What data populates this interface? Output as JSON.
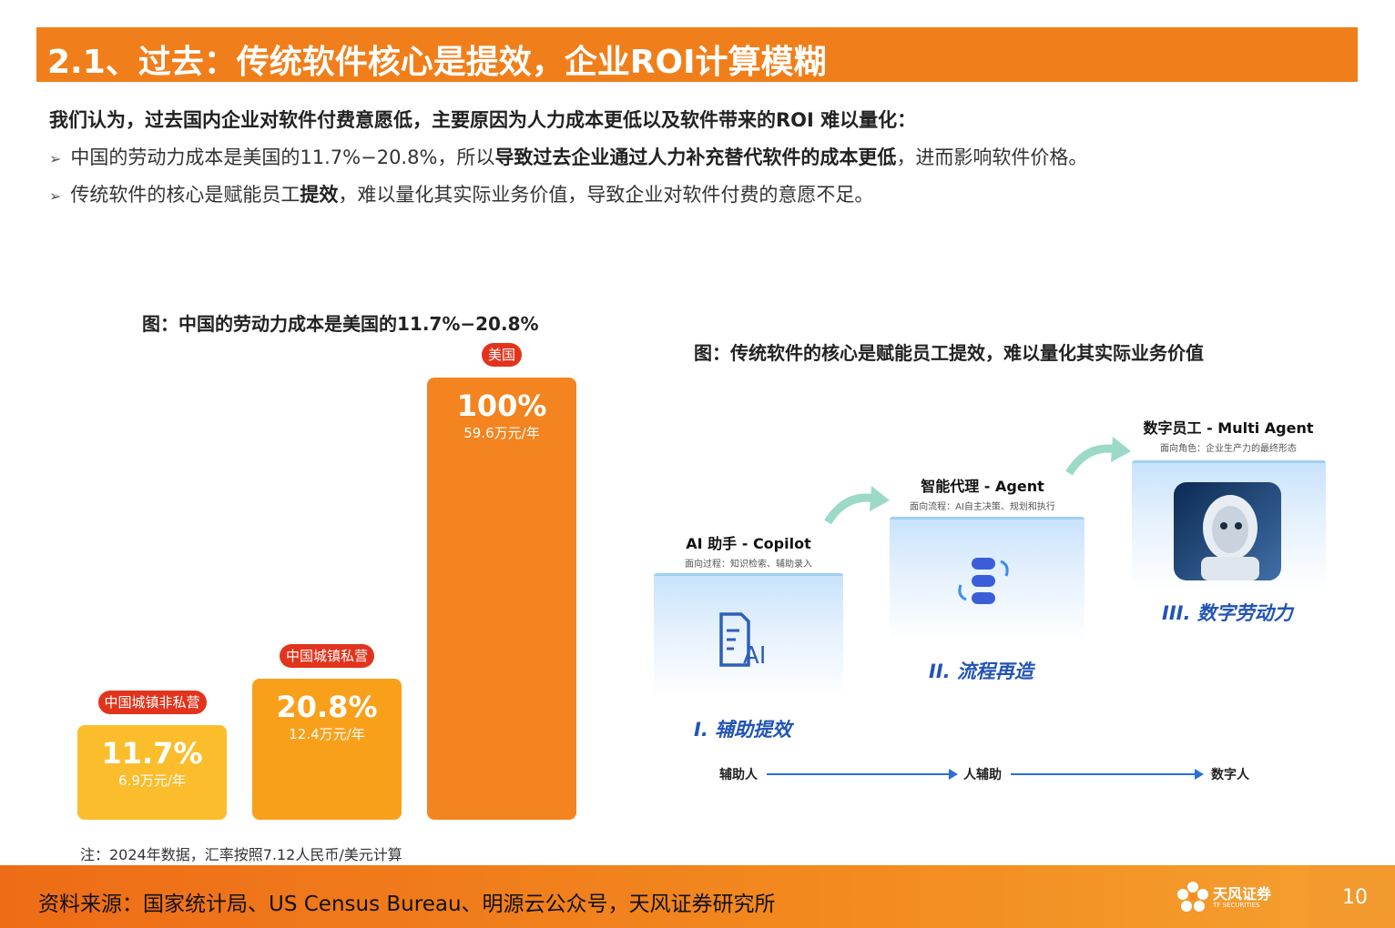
{
  "header": {
    "title": "2.1、过去：传统软件核心是提效，企业ROI计算模糊"
  },
  "intro": "我们认为，过去国内企业对软件付费意愿低，主要原因为人力成本更低以及软件带来的ROI 难以量化：",
  "bullets": [
    {
      "pre": "中国的劳动力成本是美国的11.7%−20.8%，所以",
      "bold": "导致过去企业通过人力补充替代软件的成本更低",
      "post": "，进而影响软件价格。"
    },
    {
      "pre": "传统软件的核心是赋能员工",
      "bold": "提效",
      "post": "，难以量化其实际业务价值，导致企业对软件付费的意愿不足。"
    }
  ],
  "figure1": {
    "title": "图：中国的劳动力成本是美国的11.7%−20.8%",
    "note": "注：2024年数据，汇率按照7.12人民币/美元计算"
  },
  "chart_data": {
    "type": "bar",
    "title": "图：中国的劳动力成本是美国的11.7%−20.8%",
    "categories": [
      "中国城镇非私营",
      "中国城镇私营",
      "美国"
    ],
    "values": [
      11.7,
      20.8,
      100
    ],
    "value_labels": [
      "11.7%",
      "20.8%",
      "100%"
    ],
    "sub_labels": [
      "6.9万元/年",
      "12.4万元/年",
      "59.6万元/年"
    ],
    "colors": [
      "#fbbd2c",
      "#f9a01b",
      "#f3841f"
    ],
    "ylim": [
      0,
      100
    ],
    "grid": false,
    "note": "注：2024年数据，汇率按照7.12人民币/美元计算"
  },
  "figure2": {
    "title": "图：传统软件的核心是赋能员工提效，难以量化其实际业务价值",
    "stages": [
      {
        "name": "AI 助手 - Copilot",
        "sub": "面向过程：知识检索、辅助录入",
        "label": "I. 辅助提效",
        "icon": "document-ai-icon"
      },
      {
        "name": "智能代理 - Agent",
        "sub": "面向流程：AI自主决策、规划和执行",
        "label": "II. 流程再造",
        "icon": "process-cycle-icon"
      },
      {
        "name": "数字员工 - Multi Agent",
        "sub": "面向角色：企业生产力的最终形态",
        "label": "III. 数字劳动力",
        "icon": "robot-icon"
      }
    ],
    "flow": [
      "辅助人",
      "人辅助",
      "数字人"
    ]
  },
  "footer": {
    "source": "资料来源：国家统计局、US Census Bureau、明源云公众号，天风证券研究所",
    "logo_name": "天风证券",
    "logo_sub": "TF SECURITIES",
    "page": "10",
    "colors": {
      "brand": "#f07f1b",
      "label_red": "#e2341d",
      "flow_blue": "#2a6fd6"
    }
  }
}
